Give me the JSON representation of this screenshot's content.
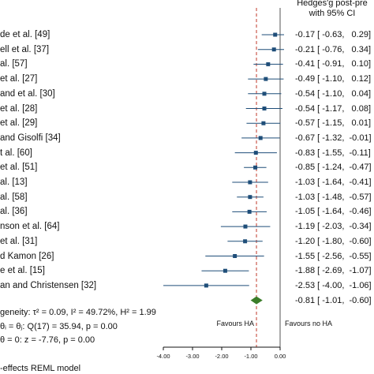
{
  "header": {
    "line1": "Hedges'g post-pre",
    "line2": "with 95% CI"
  },
  "chart_data": {
    "type": "forest",
    "studies": [
      {
        "label": "de et al. [49]",
        "g": -0.17,
        "lo": -0.63,
        "hi": 0.29,
        "ci_text": "-0.17 [ -0.63,   0.29]"
      },
      {
        "label": "ell et al. [37]",
        "g": -0.21,
        "lo": -0.76,
        "hi": 0.34,
        "ci_text": "-0.21 [ -0.76,   0.34]"
      },
      {
        "label": "al. [57]",
        "g": -0.41,
        "lo": -0.91,
        "hi": 0.1,
        "ci_text": "-0.41 [ -0.91,   0.10]"
      },
      {
        "label": "et al. [27]",
        "g": -0.49,
        "lo": -1.1,
        "hi": 0.12,
        "ci_text": "-0.49 [ -1.10,   0.12]"
      },
      {
        "label": "and et al. [30]",
        "g": -0.54,
        "lo": -1.1,
        "hi": 0.04,
        "ci_text": "-0.54 [ -1.10,   0.04]"
      },
      {
        "label": "et al. [28]",
        "g": -0.54,
        "lo": -1.17,
        "hi": 0.08,
        "ci_text": "-0.54 [ -1.17,   0.08]"
      },
      {
        "label": "et al. [29]",
        "g": -0.57,
        "lo": -1.15,
        "hi": 0.01,
        "ci_text": "-0.57 [ -1.15,   0.01]"
      },
      {
        "label": "and Gisolfi [34]",
        "g": -0.67,
        "lo": -1.32,
        "hi": -0.01,
        "ci_text": "-0.67 [ -1.32,  -0.01]"
      },
      {
        "label": "t al. [60]",
        "g": -0.83,
        "lo": -1.55,
        "hi": -0.11,
        "ci_text": "-0.83 [ -1.55,  -0.11]"
      },
      {
        "label": "et al. [51]",
        "g": -0.85,
        "lo": -1.24,
        "hi": -0.47,
        "ci_text": "-0.85 [ -1.24,  -0.47]"
      },
      {
        "label": "al. [13]",
        "g": -1.03,
        "lo": -1.64,
        "hi": -0.41,
        "ci_text": "-1.03 [ -1.64,  -0.41]"
      },
      {
        "label": "al. [58]",
        "g": -1.03,
        "lo": -1.48,
        "hi": -0.57,
        "ci_text": "-1.03 [ -1.48,  -0.57]"
      },
      {
        "label": "al. [36]",
        "g": -1.05,
        "lo": -1.64,
        "hi": -0.46,
        "ci_text": "-1.05 [ -1.64,  -0.46]"
      },
      {
        "label": "nson et al. [64]",
        "g": -1.19,
        "lo": -2.03,
        "hi": -0.34,
        "ci_text": "-1.19 [ -2.03,  -0.34]"
      },
      {
        "label": "et al. [31]",
        "g": -1.2,
        "lo": -1.8,
        "hi": -0.6,
        "ci_text": "-1.20 [ -1.80,  -0.60]"
      },
      {
        "label": "d Kamon [26]",
        "g": -1.55,
        "lo": -2.56,
        "hi": -0.55,
        "ci_text": "-1.55 [ -2.56,  -0.55]"
      },
      {
        "label": "e et al. [15]",
        "g": -1.88,
        "lo": -2.69,
        "hi": -1.07,
        "ci_text": "-1.88 [ -2.69,  -1.07]"
      },
      {
        "label": "an and Christensen [32]",
        "g": -2.53,
        "lo": -4.0,
        "hi": -1.06,
        "ci_text": "-2.53 [ -4.00,  -1.06]"
      }
    ],
    "overall": {
      "g": -0.81,
      "lo": -1.01,
      "hi": -0.6,
      "ci_text": "-0.81 [ -1.01,  -0.60]"
    },
    "stats": [
      "geneity: τ² = 0.09, I² = 49.72%, H² = 1.99",
      "θᵢ = θⱼ: Q(17) = 35.94, p = 0.00",
      "θ = 0: z = -7.76, p = 0.00"
    ],
    "footer": "-effects REML model",
    "xaxis": {
      "min": -4.0,
      "max": 0.0,
      "ticks": [
        "-4.00",
        "-3.00",
        "-2.00",
        "-1.00",
        "0.00"
      ]
    },
    "overall_line": -0.81,
    "null_line": 0.0,
    "favours_left": "Favours HA",
    "favours_right": "Favours no HA",
    "colors": {
      "marker": "#1f4e79",
      "ci_line": "#1f4e79",
      "diamond": "#3b7d2a",
      "overall_line": "#c0392b",
      "null_line": "#555555"
    }
  }
}
